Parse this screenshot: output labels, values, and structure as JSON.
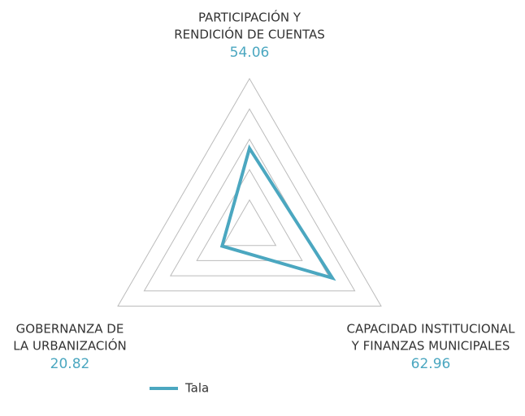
{
  "chart_data": {
    "type": "radar",
    "categories": [
      [
        "PARTICIPACIÓN Y",
        "RENDICIÓN DE CUENTAS"
      ],
      [
        "CAPACIDAD INSTITUCIONAL",
        "Y FINANZAS MUNICIPALES"
      ],
      [
        "GOBERNANZA DE",
        "LA URBANIZACIÓN"
      ]
    ],
    "series": [
      {
        "name": "Tala",
        "color": "#4ba7c0",
        "values": [
          54.06,
          62.96,
          20.82
        ]
      }
    ],
    "rlim": [
      0,
      100
    ],
    "rticks": [
      20,
      40,
      60,
      80,
      100
    ],
    "grid": true
  }
}
